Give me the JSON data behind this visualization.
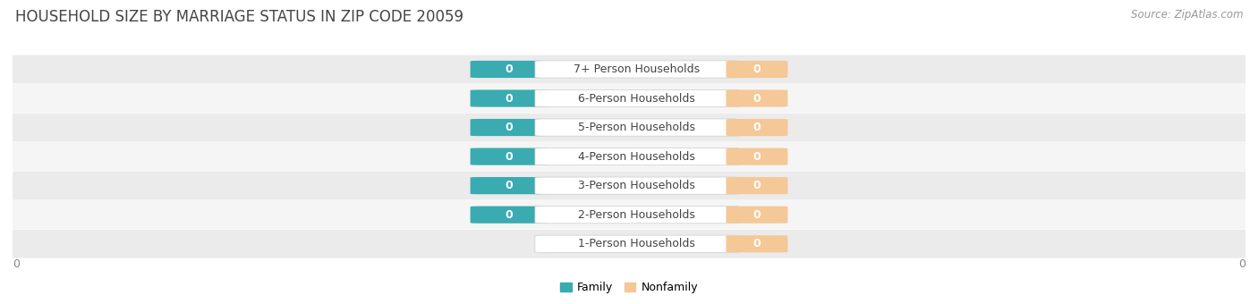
{
  "title": "HOUSEHOLD SIZE BY MARRIAGE STATUS IN ZIP CODE 20059",
  "source": "Source: ZipAtlas.com",
  "categories": [
    "1-Person Households",
    "2-Person Households",
    "3-Person Households",
    "4-Person Households",
    "5-Person Households",
    "6-Person Households",
    "7+ Person Households"
  ],
  "family_values": [
    0,
    0,
    0,
    0,
    0,
    0,
    0
  ],
  "nonfamily_values": [
    0,
    0,
    0,
    0,
    0,
    0,
    0
  ],
  "show_family_badge": [
    false,
    true,
    true,
    true,
    true,
    true,
    true
  ],
  "family_color": "#3aabb0",
  "nonfamily_color": "#f5c897",
  "row_bg_colors": [
    "#ebebeb",
    "#f5f5f5"
  ],
  "title_fontsize": 12,
  "source_fontsize": 8.5,
  "label_fontsize": 9,
  "tick_fontsize": 9,
  "legend_fontsize": 9,
  "background_color": "#ffffff",
  "text_color": "#444444",
  "tick_color": "#888888"
}
